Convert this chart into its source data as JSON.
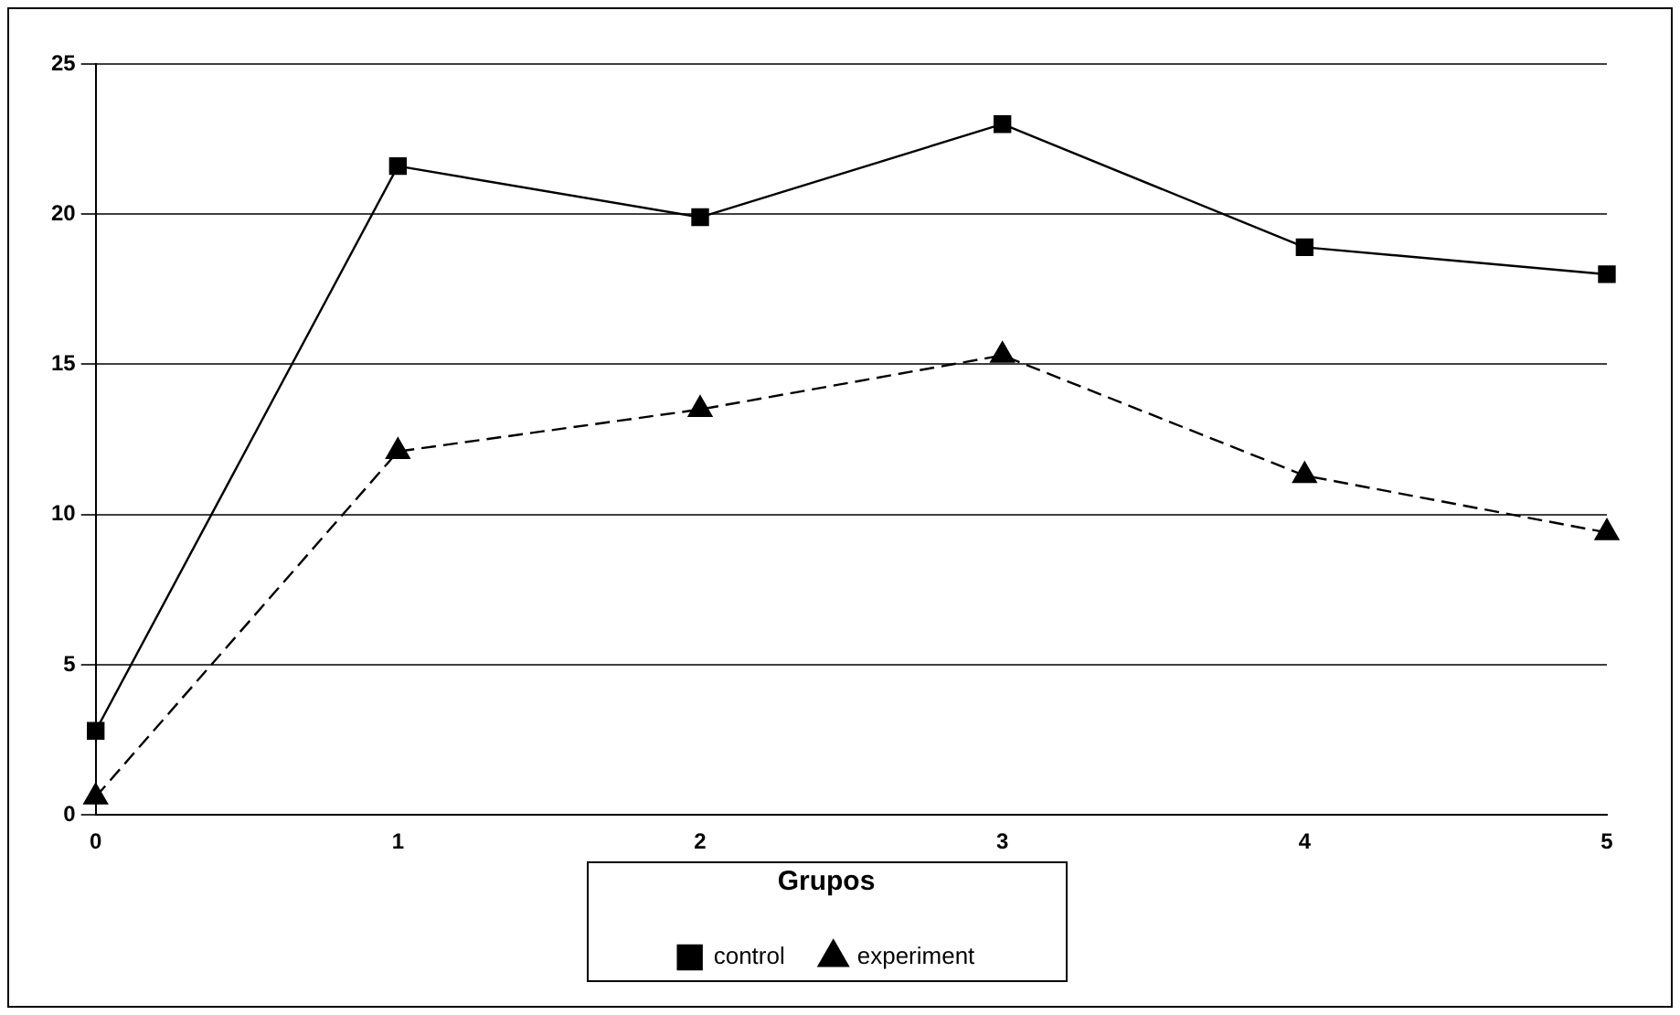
{
  "chart_data": {
    "type": "line",
    "x": [
      0,
      1,
      2,
      3,
      4,
      5
    ],
    "xlim": [
      0,
      5
    ],
    "xticks": [
      0,
      1,
      2,
      3,
      4,
      5
    ],
    "ylim": [
      0,
      25
    ],
    "yticks": [
      0,
      5,
      10,
      15,
      20,
      25
    ],
    "grid": "y",
    "legend": "bottom",
    "legend_title": "Grupos",
    "series": [
      {
        "name": "control",
        "color": "#000000",
        "marker": "square",
        "line_style": "solid",
        "values": [
          2.8,
          21.6,
          19.9,
          23.0,
          18.9,
          18.0
        ]
      },
      {
        "name": "experiment",
        "color": "#000000",
        "marker": "triangle",
        "line_style": "dashed",
        "values": [
          0.6,
          12.1,
          13.5,
          15.3,
          11.3,
          9.4
        ]
      }
    ]
  }
}
